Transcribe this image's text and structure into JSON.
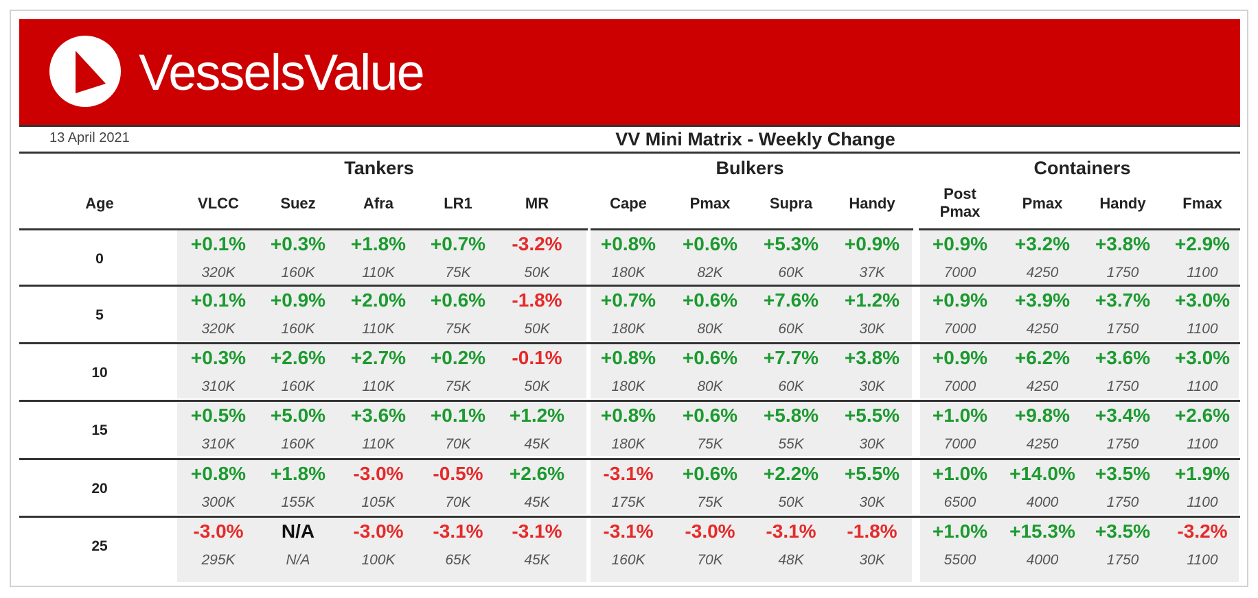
{
  "header": {
    "brand": "VesselsValue",
    "date": "13 April 2021",
    "title": "VV Mini Matrix - Weekly Change",
    "brand_color": "#cc0000"
  },
  "groups": [
    "Tankers",
    "Bulkers",
    "Containers"
  ],
  "age_label": "Age",
  "columns": [
    "VLCC",
    "Suez",
    "Afra",
    "LR1",
    "MR",
    "Cape",
    "Pmax",
    "Supra",
    "Handy",
    "Post Pmax",
    "Pmax",
    "Handy",
    "Fmax"
  ],
  "colors": {
    "positive": "#1c9a2f",
    "negative": "#e52a2a"
  },
  "rows": [
    {
      "age": "0",
      "changes": [
        "+0.1%",
        "+0.3%",
        "+1.8%",
        "+0.7%",
        "-3.2%",
        "+0.8%",
        "+0.6%",
        "+5.3%",
        "+0.9%",
        "+0.9%",
        "+3.2%",
        "+3.8%",
        "+2.9%"
      ],
      "sizes": [
        "320K",
        "160K",
        "110K",
        "75K",
        "50K",
        "180K",
        "82K",
        "60K",
        "37K",
        "7000",
        "4250",
        "1750",
        "1100"
      ]
    },
    {
      "age": "5",
      "changes": [
        "+0.1%",
        "+0.9%",
        "+2.0%",
        "+0.6%",
        "-1.8%",
        "+0.7%",
        "+0.6%",
        "+7.6%",
        "+1.2%",
        "+0.9%",
        "+3.9%",
        "+3.7%",
        "+3.0%"
      ],
      "sizes": [
        "320K",
        "160K",
        "110K",
        "75K",
        "50K",
        "180K",
        "80K",
        "60K",
        "30K",
        "7000",
        "4250",
        "1750",
        "1100"
      ]
    },
    {
      "age": "10",
      "changes": [
        "+0.3%",
        "+2.6%",
        "+2.7%",
        "+0.2%",
        "-0.1%",
        "+0.8%",
        "+0.6%",
        "+7.7%",
        "+3.8%",
        "+0.9%",
        "+6.2%",
        "+3.6%",
        "+3.0%"
      ],
      "sizes": [
        "310K",
        "160K",
        "110K",
        "75K",
        "50K",
        "180K",
        "80K",
        "60K",
        "30K",
        "7000",
        "4250",
        "1750",
        "1100"
      ]
    },
    {
      "age": "15",
      "changes": [
        "+0.5%",
        "+5.0%",
        "+3.6%",
        "+0.1%",
        "+1.2%",
        "+0.8%",
        "+0.6%",
        "+5.8%",
        "+5.5%",
        "+1.0%",
        "+9.8%",
        "+3.4%",
        "+2.6%"
      ],
      "sizes": [
        "310K",
        "160K",
        "110K",
        "70K",
        "45K",
        "180K",
        "75K",
        "55K",
        "30K",
        "7000",
        "4250",
        "1750",
        "1100"
      ]
    },
    {
      "age": "20",
      "changes": [
        "+0.8%",
        "+1.8%",
        "-3.0%",
        "-0.5%",
        "+2.6%",
        "-3.1%",
        "+0.6%",
        "+2.2%",
        "+5.5%",
        "+1.0%",
        "+14.0%",
        "+3.5%",
        "+1.9%"
      ],
      "sizes": [
        "300K",
        "155K",
        "105K",
        "70K",
        "45K",
        "175K",
        "75K",
        "50K",
        "30K",
        "6500",
        "4000",
        "1750",
        "1100"
      ]
    },
    {
      "age": "25",
      "changes": [
        "-3.0%",
        "N/A",
        "-3.0%",
        "-3.1%",
        "-3.1%",
        "-3.1%",
        "-3.0%",
        "-3.1%",
        "-1.8%",
        "+1.0%",
        "+15.3%",
        "+3.5%",
        "-3.2%"
      ],
      "sizes": [
        "295K",
        "N/A",
        "100K",
        "65K",
        "45K",
        "160K",
        "70K",
        "48K",
        "30K",
        "5500",
        "4000",
        "1750",
        "1100"
      ]
    }
  ]
}
